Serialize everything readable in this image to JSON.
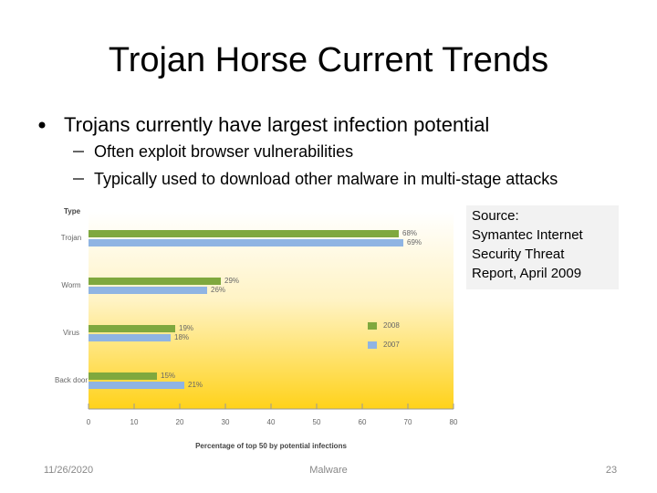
{
  "slide": {
    "title": "Trojan Horse Current Trends",
    "bullet": "Trojans currently have largest infection potential",
    "sub_bullets": [
      "Often exploit browser vulnerabilities",
      "Typically used to download other malware in multi-stage attacks"
    ],
    "source_lines": [
      "Source:",
      "Symantec Internet",
      "Security Threat",
      "Report, April 2009"
    ],
    "footer": {
      "date": "11/26/2020",
      "center": "Malware",
      "page": "23"
    }
  },
  "chart_data": {
    "type": "hbar",
    "category_header": "Type",
    "x_label": "Percentage of top 50 by potential infections",
    "categories": [
      "Trojan",
      "Worm",
      "Virus",
      "Back door"
    ],
    "series": [
      {
        "name": "2008",
        "color": "#7fa83e",
        "values": [
          68,
          29,
          19,
          15
        ],
        "value_labels": [
          "68%",
          "29%",
          "19%",
          "15%"
        ]
      },
      {
        "name": "2007",
        "color": "#8fb4e3",
        "values": [
          69,
          26,
          18,
          21
        ],
        "value_labels": [
          "69%",
          "26%",
          "18%",
          "21%"
        ]
      }
    ],
    "xlim": [
      0,
      80
    ],
    "xticks": [
      0,
      10,
      20,
      30,
      40,
      50,
      60,
      70,
      80
    ],
    "legend": "right"
  }
}
